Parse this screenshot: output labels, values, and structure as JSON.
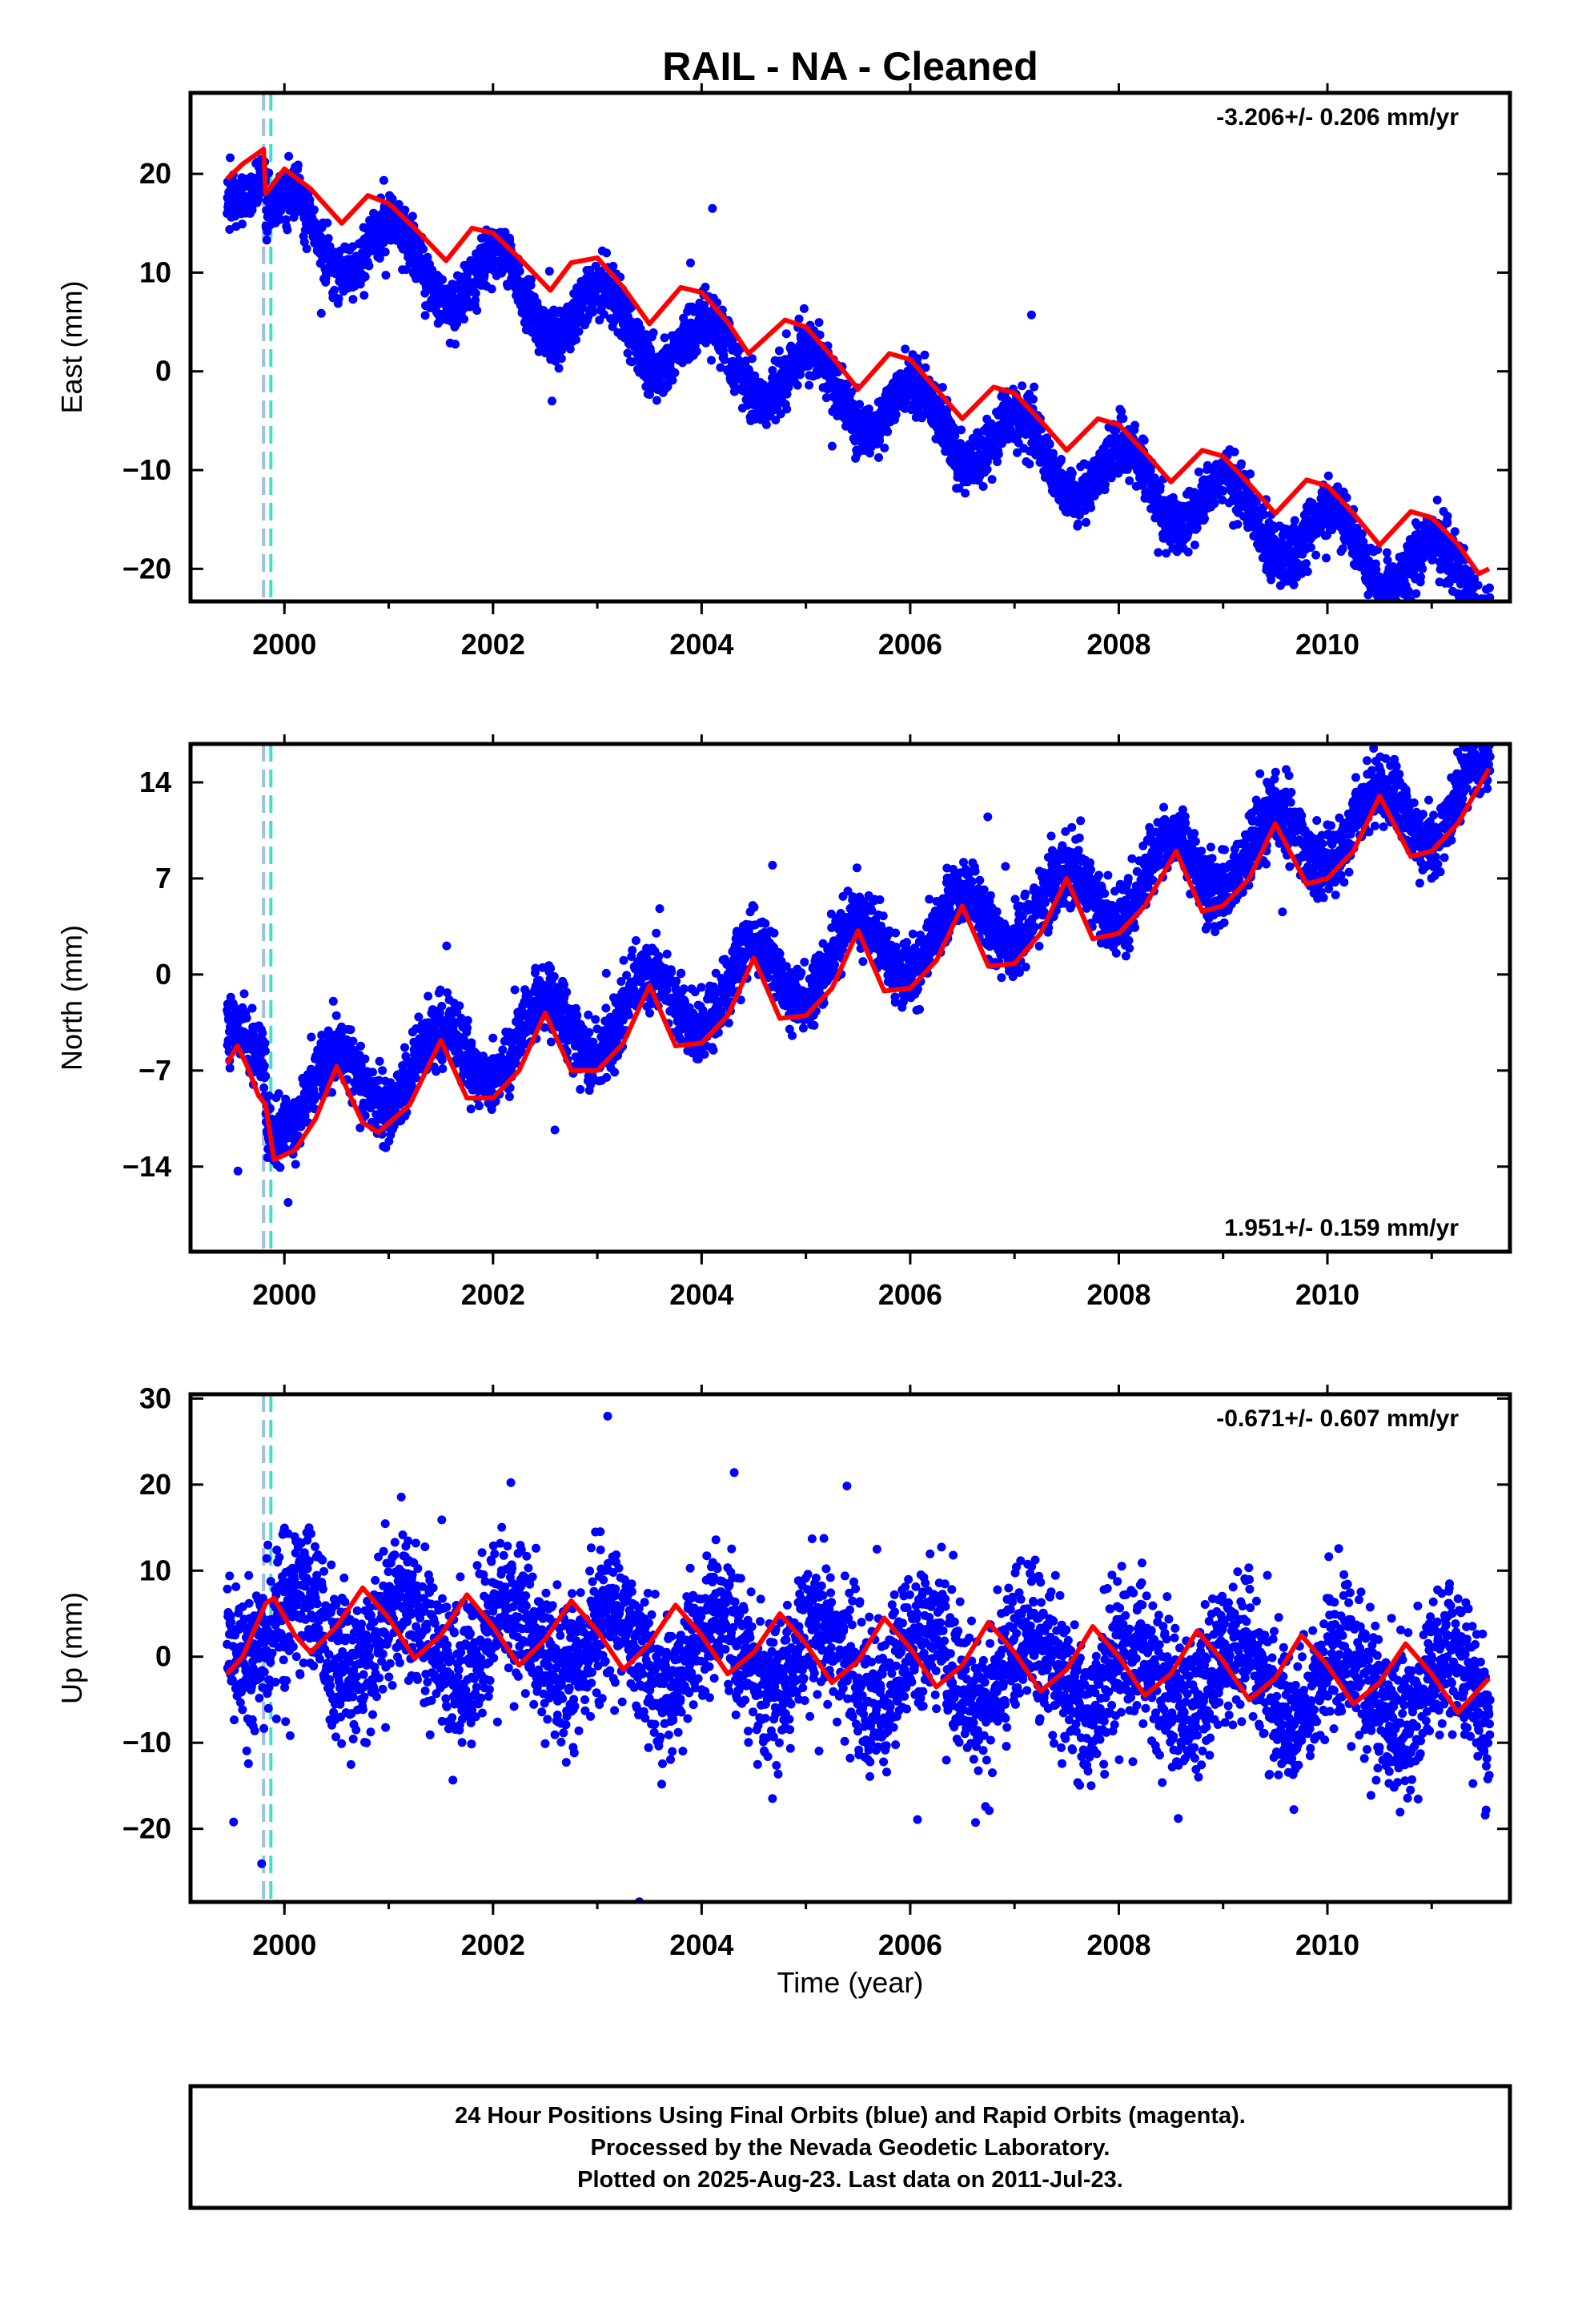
{
  "chart_data": {
    "type": "scatter",
    "title": "RAIL  - NA - Cleaned",
    "xlabel": "Time (year)",
    "xlim": [
      1999.1,
      2011.75
    ],
    "x_ticks": [
      2000,
      2002,
      2004,
      2006,
      2008,
      2010
    ],
    "equipment_change_dates": [
      1999.8,
      1999.87
    ],
    "colors": {
      "final_orbits": "#0000ff",
      "model_fit": "#ff0000",
      "equipment_change": "#40e0d0",
      "equipment_change_secondary": "#9ec0e0"
    },
    "panels": [
      {
        "name": "east",
        "ylabel": "East (mm)",
        "ylim": [
          -23.3,
          28.2
        ],
        "y_ticks": [
          -20,
          -10,
          0,
          10,
          20
        ],
        "rate_label": "-3.206+/- 0.206 mm/yr",
        "rate_position": "top-right",
        "model": {
          "trend": [
            1999.45,
            20.8,
            -3.206
          ],
          "annual_amplitude": 3.3,
          "annual_phase": 1.2,
          "noise": 1.4,
          "steps": [
            {
              "t": 1999.82,
              "dy": -4.0
            }
          ]
        },
        "fit_line": {
          "x": [
            1999.45,
            1999.6,
            1999.8,
            1999.82,
            2000.0,
            2000.25,
            2000.55,
            2000.8,
            2001.0,
            2001.25,
            2001.55,
            2001.8,
            2002.0,
            2002.25,
            2002.55,
            2002.75,
            2003.0,
            2003.25,
            2003.5,
            2003.8,
            2004.0,
            2004.25,
            2004.45,
            2004.8,
            2005.0,
            2005.25,
            2005.5,
            2005.8,
            2006.0,
            2006.25,
            2006.5,
            2006.8,
            2007.0,
            2007.25,
            2007.5,
            2007.8,
            2008.0,
            2008.25,
            2008.5,
            2008.8,
            2009.0,
            2009.25,
            2009.5,
            2009.8,
            2010.0,
            2010.25,
            2010.5,
            2010.8,
            2011.0,
            2011.25,
            2011.45,
            2011.55
          ],
          "y": [
            19.5,
            21.0,
            22.5,
            18.0,
            20.5,
            18.5,
            15.0,
            17.8,
            17.0,
            14.5,
            11.2,
            14.5,
            14.0,
            11.5,
            8.2,
            11.0,
            11.5,
            8.5,
            4.8,
            8.5,
            8.0,
            5.0,
            1.8,
            5.2,
            4.5,
            1.5,
            -1.8,
            1.8,
            1.2,
            -1.8,
            -4.8,
            -1.6,
            -2.2,
            -5.0,
            -8.0,
            -4.8,
            -5.4,
            -8.2,
            -11.2,
            -8.0,
            -8.6,
            -11.4,
            -14.4,
            -11.0,
            -11.6,
            -14.4,
            -17.6,
            -14.2,
            -14.8,
            -17.5,
            -20.5,
            -20.0
          ]
        }
      },
      {
        "name": "north",
        "ylabel": "North (mm)",
        "ylim": [
          -20.2,
          16.8
        ],
        "y_ticks": [
          -14,
          -7,
          0,
          7,
          14
        ],
        "rate_label": "1.951+/- 0.159 mm/yr",
        "rate_position": "bottom-right",
        "model": {
          "trend": [
            1999.45,
            -6.2,
            1.951
          ],
          "annual_amplitude": 2.5,
          "annual_phase": 4.8,
          "noise": 1.2,
          "steps": [
            {
              "t": 1999.82,
              "dy": -4.0
            }
          ]
        },
        "fit_line": {
          "x": [
            1999.45,
            1999.55,
            1999.65,
            1999.75,
            1999.82,
            1999.9,
            2000.1,
            2000.3,
            2000.5,
            2000.75,
            2000.9,
            2001.2,
            2001.5,
            2001.75,
            2002.0,
            2002.25,
            2002.5,
            2002.75,
            2003.0,
            2003.25,
            2003.5,
            2003.75,
            2004.0,
            2004.25,
            2004.5,
            2004.75,
            2005.0,
            2005.25,
            2005.5,
            2005.75,
            2006.0,
            2006.25,
            2006.5,
            2006.75,
            2007.0,
            2007.25,
            2007.5,
            2007.75,
            2008.0,
            2008.25,
            2008.55,
            2008.8,
            2009.0,
            2009.25,
            2009.5,
            2009.8,
            2010.0,
            2010.25,
            2010.5,
            2010.8,
            2011.0,
            2011.25,
            2011.55
          ],
          "y": [
            -6.5,
            -5.2,
            -6.8,
            -8.8,
            -9.5,
            -13.5,
            -12.8,
            -10.5,
            -6.7,
            -10.8,
            -11.5,
            -9.5,
            -4.8,
            -9.0,
            -9.0,
            -7.0,
            -2.8,
            -7.0,
            -7.0,
            -5.0,
            -0.8,
            -5.2,
            -5.0,
            -3.0,
            1.2,
            -3.2,
            -3.0,
            -1.0,
            3.2,
            -1.2,
            -1.0,
            1.0,
            5.0,
            0.6,
            0.8,
            3.0,
            7.0,
            2.6,
            3.0,
            5.0,
            9.0,
            4.6,
            5.0,
            7.0,
            11.0,
            6.6,
            7.0,
            9.0,
            13.0,
            8.6,
            9.0,
            11.0,
            15.0
          ]
        }
      },
      {
        "name": "up",
        "ylabel": "Up (mm)",
        "ylim": [
          -28.5,
          30.5
        ],
        "y_ticks": [
          -20,
          -10,
          0,
          10,
          20,
          30
        ],
        "rate_label": "-0.671+/- 0.607 mm/yr",
        "rate_position": "top-right",
        "model": {
          "trend": [
            1999.45,
            3.5,
            -0.671
          ],
          "annual_amplitude": 4.2,
          "annual_phase": 0.6,
          "noise": 4.2,
          "steps": []
        },
        "fit_line": {
          "x": [
            1999.45,
            1999.6,
            1999.82,
            1999.9,
            2000.1,
            2000.25,
            2000.5,
            2000.75,
            2001.0,
            2001.25,
            2001.5,
            2001.75,
            2002.0,
            2002.25,
            2002.5,
            2002.75,
            2003.0,
            2003.25,
            2003.5,
            2003.75,
            2004.0,
            2004.25,
            2004.5,
            2004.75,
            2005.0,
            2005.25,
            2005.5,
            2005.75,
            2006.0,
            2006.25,
            2006.5,
            2006.75,
            2007.0,
            2007.25,
            2007.5,
            2007.75,
            2008.0,
            2008.25,
            2008.5,
            2008.75,
            2009.0,
            2009.25,
            2009.5,
            2009.75,
            2010.0,
            2010.25,
            2010.5,
            2010.75,
            2011.0,
            2011.25,
            2011.55
          ],
          "y": [
            -2.0,
            0.0,
            6.2,
            6.8,
            2.5,
            0.5,
            3.5,
            8.0,
            4.5,
            -0.2,
            2.5,
            7.2,
            3.5,
            -1.0,
            2.0,
            6.5,
            3.0,
            -1.5,
            1.5,
            6.0,
            2.5,
            -2.0,
            0.5,
            5.0,
            1.5,
            -3.0,
            -0.5,
            4.5,
            1.0,
            -3.5,
            -1.0,
            4.0,
            0.5,
            -4.0,
            -1.5,
            3.5,
            0.0,
            -4.5,
            -2.0,
            3.0,
            -0.5,
            -5.0,
            -2.5,
            2.5,
            -1.0,
            -5.5,
            -3.0,
            1.5,
            -2.0,
            -6.5,
            -2.5
          ]
        }
      }
    ]
  },
  "footer": {
    "line1": "24 Hour Positions Using Final Orbits (blue) and Rapid Orbits (magenta).",
    "line2": "Processed by the Nevada Geodetic Laboratory.",
    "line3": "Plotted on 2025-Aug-23. Last data on 2011-Jul-23."
  }
}
